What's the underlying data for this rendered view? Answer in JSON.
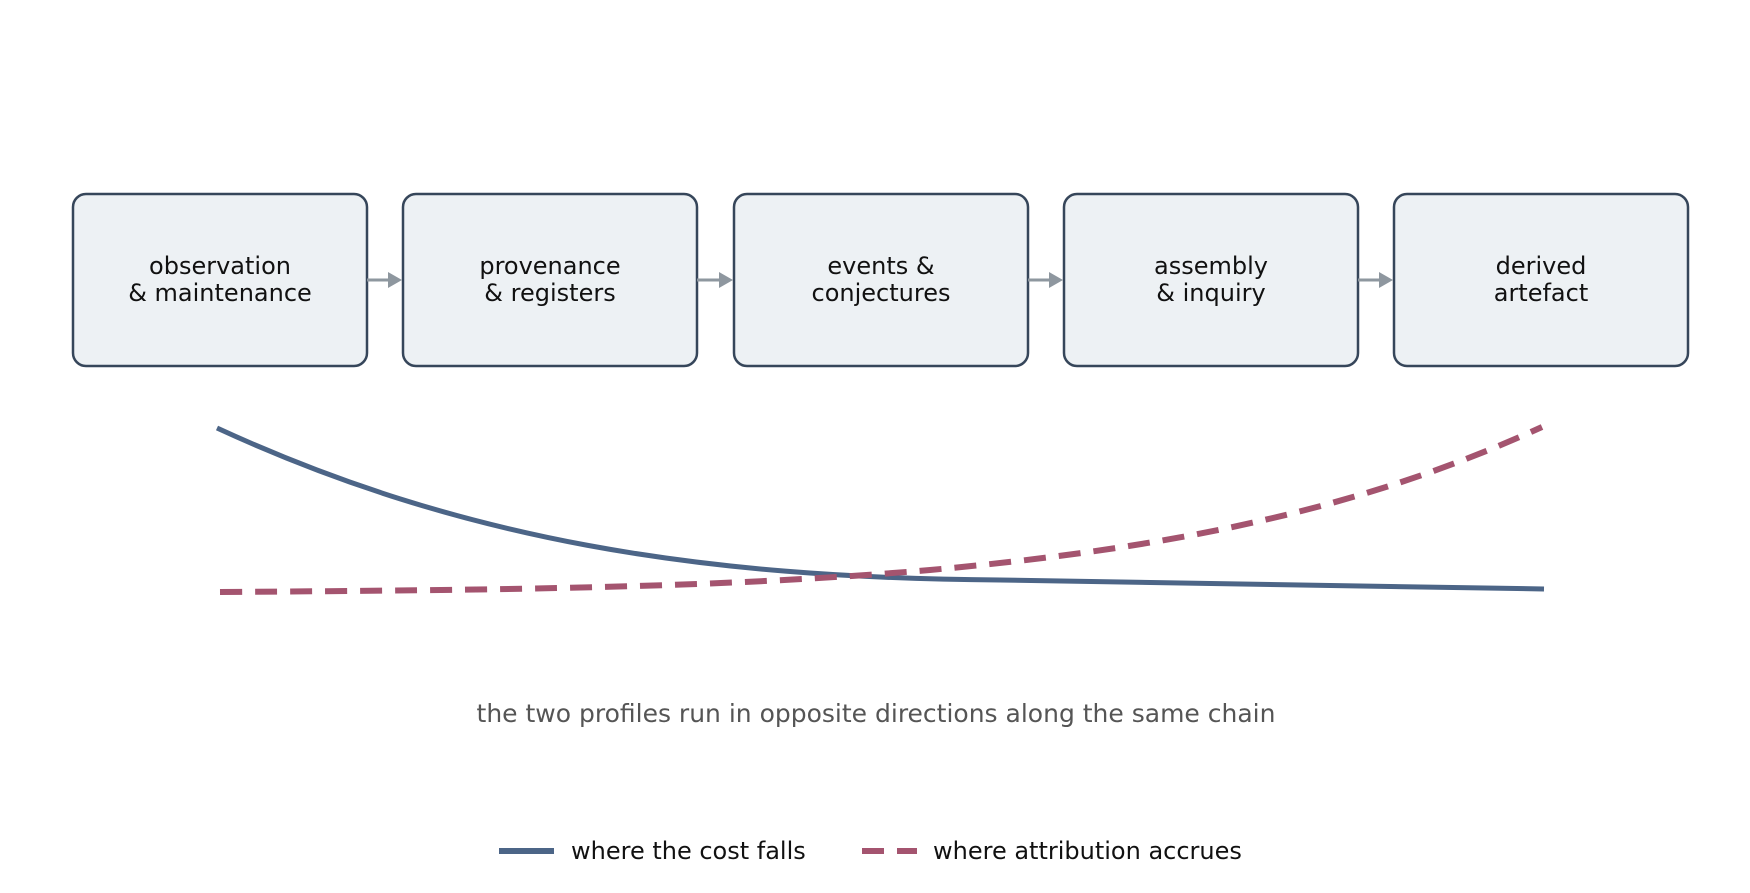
{
  "stages": [
    {
      "line1": "observation",
      "line2": "& maintenance"
    },
    {
      "line1": "provenance",
      "line2": "& registers"
    },
    {
      "line1": "events &",
      "line2": "conjectures"
    },
    {
      "line1": "assembly",
      "line2": "& inquiry"
    },
    {
      "line1": "derived",
      "line2": "artefact"
    }
  ],
  "caption": "the two profiles run in opposite directions along the same chain",
  "legend": {
    "cost": "where the cost falls",
    "attribution": "where attribution accrues"
  },
  "colors": {
    "cost": "#4c6587",
    "attribution": "#a4546f",
    "box_fill": "#edf1f4",
    "box_stroke": "#36465a",
    "arrow": "#8e979f"
  }
}
